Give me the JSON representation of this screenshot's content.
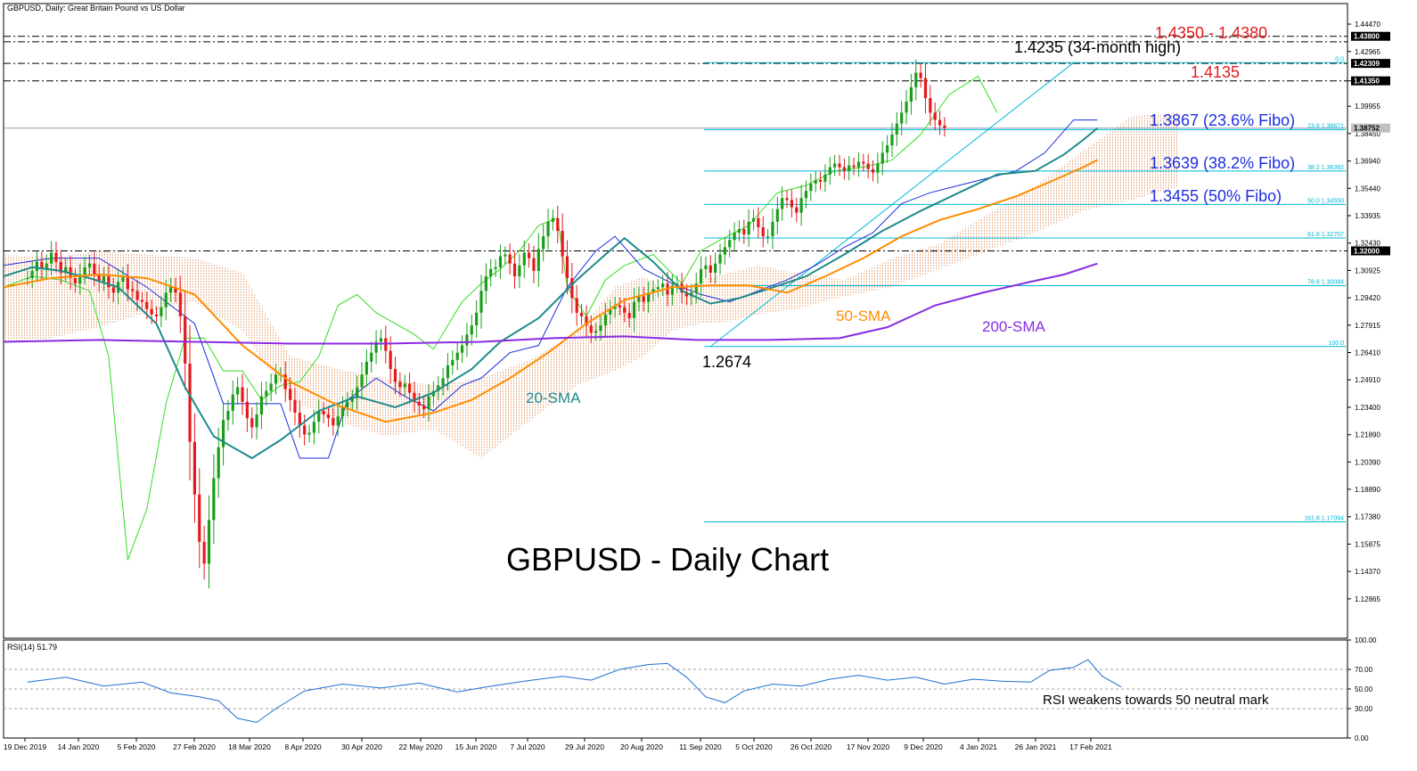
{
  "header": {
    "title": "GBPUSD, Daily:  Great Britain Pound vs US Dollar"
  },
  "chart_title": "GBPUSD - Daily Chart",
  "chart_data": {
    "type": "candlestick",
    "symbol": "GBPUSD",
    "timeframe": "Daily",
    "ylim": [
      1.107,
      1.456
    ],
    "y_ticks": [
      "1.44470",
      "1.42965",
      "1.41350",
      "1.39955",
      "1.38450",
      "1.36940",
      "1.35440",
      "1.33935",
      "1.32430",
      "1.30925",
      "1.29420",
      "1.27915",
      "1.26410",
      "1.24910",
      "1.23400",
      "1.21890",
      "1.20390",
      "1.18890",
      "1.17380",
      "1.15875",
      "1.14370",
      "1.12865"
    ],
    "highlighted_levels": [
      {
        "label": "1.43800",
        "value": 1.438,
        "bg": "#000000",
        "fg": "#ffffff"
      },
      {
        "label": "1.42309",
        "value": 1.42309,
        "bg": "#000000",
        "fg": "#ffffff"
      },
      {
        "label": "1.41350",
        "value": 1.4135,
        "bg": "#000000",
        "fg": "#ffffff"
      },
      {
        "label": "1.38752",
        "value": 1.38752,
        "bg": "#c0c0c0",
        "fg": "#000000"
      },
      {
        "label": "1.32000",
        "value": 1.32,
        "bg": "#000000",
        "fg": "#ffffff"
      }
    ],
    "x_labels": [
      "19 Dec 2019",
      "14 Jan 2020",
      "5 Feb 2020",
      "27 Feb 2020",
      "18 Mar 2020",
      "8 Apr 2020",
      "30 Apr 2020",
      "22 May 2020",
      "15 Jun 2020",
      "7 Jul 2020",
      "29 Jul 2020",
      "20 Aug 2020",
      "11 Sep 2020",
      "5 Oct 2020",
      "26 Oct 2020",
      "17 Nov 2020",
      "9 Dec 2020",
      "4 Jan 2021",
      "26 Jan 2021",
      "17 Feb 2021"
    ],
    "horizontal_lines": [
      {
        "value": 1.435,
        "style": "dash-dot",
        "color": "#000000"
      },
      {
        "value": 1.438,
        "style": "dash-dot",
        "color": "#000000"
      },
      {
        "value": 1.42309,
        "style": "dash-dot",
        "color": "#000000"
      },
      {
        "value": 1.4135,
        "style": "dash-dot",
        "color": "#000000"
      },
      {
        "value": 1.3875,
        "style": "solid",
        "color": "#8aa3b8"
      },
      {
        "value": 1.32,
        "style": "dash-dot",
        "color": "#000000"
      }
    ],
    "fibonacci": {
      "color": "#00b7d6",
      "levels": [
        {
          "label": "0.0",
          "value": 1.4235
        },
        {
          "label": "23.6 1.38671",
          "value": 1.38671
        },
        {
          "label": "38.2 1.36392",
          "value": 1.36392
        },
        {
          "label": "50.0 1.34550",
          "value": 1.3455
        },
        {
          "label": "61.8 1.32707",
          "value": 1.32707
        },
        {
          "label": "78.6 1.30084",
          "value": 1.30084
        },
        {
          "label": "100.0",
          "value": 1.2674
        },
        {
          "label": "161.8 1.17094",
          "value": 1.17094
        }
      ]
    },
    "annotations": [
      {
        "text": "1.4350 - 1.4380",
        "color": "#e31a1c"
      },
      {
        "text": "1.4235 (34-month high)",
        "color": "#000000"
      },
      {
        "text": "1.4135",
        "color": "#e31a1c"
      },
      {
        "text": "1.3867 (23.6% Fibo)",
        "color": "#1f2fe0"
      },
      {
        "text": "1.3639 (38.2% Fibo)",
        "color": "#1f2fe0"
      },
      {
        "text": "1.3455 (50% Fibo)",
        "color": "#1f2fe0"
      },
      {
        "text": "1.2674",
        "color": "#000000"
      },
      {
        "text": "50-SMA",
        "color": "#ff8c00"
      },
      {
        "text": "200-SMA",
        "color": "#8a2be2"
      },
      {
        "text": "20-SMA",
        "color": "#1f8a8a"
      }
    ],
    "series": [
      {
        "name": "20-SMA",
        "color": "#1f8a8a",
        "points": [
          [
            0,
            1.306
          ],
          [
            6,
            1.311
          ],
          [
            12,
            1.309
          ],
          [
            18,
            1.305
          ],
          [
            24,
            1.3
          ],
          [
            32,
            1.28
          ],
          [
            38,
            1.245
          ],
          [
            44,
            1.218
          ],
          [
            52,
            1.206
          ],
          [
            58,
            1.216
          ],
          [
            66,
            1.232
          ],
          [
            74,
            1.24
          ],
          [
            82,
            1.234
          ],
          [
            90,
            1.242
          ],
          [
            98,
            1.255
          ],
          [
            104,
            1.27
          ],
          [
            112,
            1.283
          ],
          [
            120,
            1.304
          ],
          [
            126,
            1.318
          ],
          [
            130,
            1.327
          ],
          [
            136,
            1.314
          ],
          [
            142,
            1.298
          ],
          [
            148,
            1.291
          ],
          [
            154,
            1.294
          ],
          [
            160,
            1.299
          ],
          [
            168,
            1.306
          ],
          [
            176,
            1.318
          ],
          [
            184,
            1.331
          ],
          [
            192,
            1.342
          ],
          [
            200,
            1.352
          ],
          [
            208,
            1.362
          ],
          [
            216,
            1.364
          ],
          [
            222,
            1.373
          ],
          [
            226,
            1.381
          ],
          [
            229,
            1.3875
          ]
        ]
      },
      {
        "name": "50-SMA",
        "color": "#ff8c00",
        "points": [
          [
            0,
            1.3
          ],
          [
            10,
            1.305
          ],
          [
            20,
            1.307
          ],
          [
            30,
            1.305
          ],
          [
            40,
            1.296
          ],
          [
            50,
            1.268
          ],
          [
            60,
            1.248
          ],
          [
            70,
            1.235
          ],
          [
            80,
            1.226
          ],
          [
            90,
            1.231
          ],
          [
            98,
            1.238
          ],
          [
            106,
            1.25
          ],
          [
            114,
            1.264
          ],
          [
            122,
            1.28
          ],
          [
            130,
            1.293
          ],
          [
            140,
            1.3
          ],
          [
            148,
            1.301
          ],
          [
            156,
            1.301
          ],
          [
            164,
            1.297
          ],
          [
            172,
            1.306
          ],
          [
            180,
            1.316
          ],
          [
            188,
            1.328
          ],
          [
            196,
            1.337
          ],
          [
            204,
            1.343
          ],
          [
            212,
            1.35
          ],
          [
            220,
            1.359
          ],
          [
            226,
            1.366
          ],
          [
            229,
            1.37
          ]
        ]
      },
      {
        "name": "200-SMA",
        "color": "#8a2be2",
        "points": [
          [
            0,
            1.27
          ],
          [
            20,
            1.271
          ],
          [
            40,
            1.27
          ],
          [
            60,
            1.269
          ],
          [
            80,
            1.269
          ],
          [
            100,
            1.27
          ],
          [
            115,
            1.272
          ],
          [
            130,
            1.273
          ],
          [
            145,
            1.271
          ],
          [
            160,
            1.271
          ],
          [
            175,
            1.272
          ],
          [
            185,
            1.278
          ],
          [
            195,
            1.29
          ],
          [
            205,
            1.297
          ],
          [
            215,
            1.303
          ],
          [
            222,
            1.307
          ],
          [
            229,
            1.313
          ]
        ]
      }
    ],
    "candles_close": [
      1.305,
      1.309,
      1.314,
      1.31,
      1.313,
      1.319,
      1.314,
      1.308,
      1.311,
      1.305,
      1.302,
      1.307,
      1.311,
      1.313,
      1.307,
      1.303,
      1.306,
      1.3,
      1.297,
      1.303,
      1.306,
      1.299,
      1.298,
      1.293,
      1.292,
      1.288,
      1.285,
      1.284,
      1.289,
      1.297,
      1.3,
      1.297,
      1.284,
      1.258,
      1.215,
      1.186,
      1.16,
      1.148,
      1.172,
      1.195,
      1.212,
      1.227,
      1.232,
      1.241,
      1.245,
      1.237,
      1.228,
      1.223,
      1.23,
      1.24,
      1.243,
      1.247,
      1.252,
      1.252,
      1.244,
      1.238,
      1.231,
      1.224,
      1.219,
      1.22,
      1.226,
      1.232,
      1.23,
      1.228,
      1.224,
      1.229,
      1.234,
      1.237,
      1.239,
      1.245,
      1.252,
      1.259,
      1.264,
      1.27,
      1.272,
      1.265,
      1.255,
      1.248,
      1.245,
      1.247,
      1.242,
      1.237,
      1.235,
      1.233,
      1.24,
      1.243,
      1.246,
      1.25,
      1.257,
      1.26,
      1.264,
      1.268,
      1.274,
      1.279,
      1.286,
      1.298,
      1.306,
      1.31,
      1.311,
      1.317,
      1.318,
      1.313,
      1.306,
      1.312,
      1.319,
      1.316,
      1.309,
      1.321,
      1.328,
      1.336,
      1.338,
      1.331,
      1.317,
      1.305,
      1.294,
      1.286,
      1.284,
      1.279,
      1.275,
      1.276,
      1.279,
      1.285,
      1.288,
      1.29,
      1.289,
      1.286,
      1.283,
      1.292,
      1.295,
      1.292,
      1.297,
      1.299,
      1.3,
      1.302,
      1.296,
      1.301,
      1.302,
      1.297,
      1.295,
      1.297,
      1.302,
      1.31,
      1.312,
      1.308,
      1.313,
      1.318,
      1.322,
      1.326,
      1.33,
      1.332,
      1.329,
      1.336,
      1.338,
      1.333,
      1.328,
      1.328,
      1.336,
      1.343,
      1.349,
      1.348,
      1.344,
      1.341,
      1.349,
      1.353,
      1.357,
      1.359,
      1.358,
      1.362,
      1.366,
      1.368,
      1.366,
      1.364,
      1.367,
      1.366,
      1.369,
      1.368,
      1.365,
      1.363,
      1.368,
      1.374,
      1.378,
      1.384,
      1.39,
      1.396,
      1.402,
      1.41,
      1.418,
      1.415,
      1.404,
      1.396,
      1.392,
      1.389,
      1.3875
    ],
    "candles_x_from": 5,
    "rsi": {
      "label": "RSI(14) 51.79",
      "ylim": [
        0,
        100
      ],
      "ticks": [
        "100.00",
        "70.00",
        "50.00",
        "30.00",
        "0.00"
      ],
      "levels": [
        70,
        50,
        30
      ],
      "color": "#1a6fd1",
      "points": [
        [
          0,
          57
        ],
        [
          8,
          62
        ],
        [
          16,
          53
        ],
        [
          24,
          57
        ],
        [
          30,
          46
        ],
        [
          36,
          42
        ],
        [
          40,
          38
        ],
        [
          44,
          20
        ],
        [
          48,
          16
        ],
        [
          52,
          30
        ],
        [
          58,
          48
        ],
        [
          66,
          55
        ],
        [
          74,
          51
        ],
        [
          82,
          56
        ],
        [
          90,
          47
        ],
        [
          96,
          52
        ],
        [
          104,
          58
        ],
        [
          112,
          63
        ],
        [
          118,
          59
        ],
        [
          124,
          70
        ],
        [
          130,
          75
        ],
        [
          134,
          76
        ],
        [
          138,
          62
        ],
        [
          142,
          42
        ],
        [
          146,
          36
        ],
        [
          150,
          48
        ],
        [
          156,
          55
        ],
        [
          162,
          53
        ],
        [
          168,
          60
        ],
        [
          174,
          64
        ],
        [
          180,
          59
        ],
        [
          186,
          62
        ],
        [
          192,
          55
        ],
        [
          198,
          60
        ],
        [
          204,
          58
        ],
        [
          210,
          57
        ],
        [
          214,
          69
        ],
        [
          219,
          72
        ],
        [
          222,
          80
        ],
        [
          225,
          63
        ],
        [
          229,
          52
        ]
      ]
    },
    "labels": {
      "rsi_note": "RSI weakens towards 50 neutral mark"
    }
  }
}
